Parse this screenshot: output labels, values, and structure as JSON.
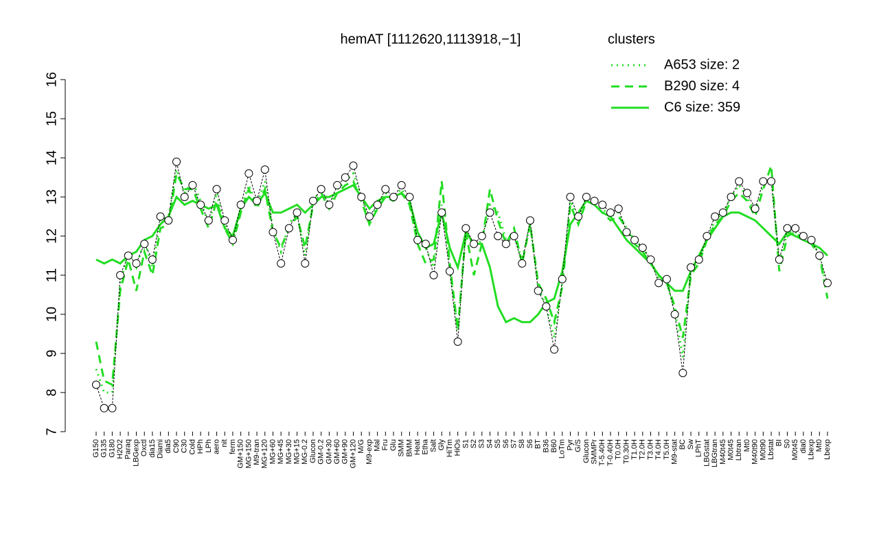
{
  "chart_data": {
    "type": "line",
    "title": "hemAT [1112620,1113918,−1]",
    "legend_title": "clusters",
    "legend_color": "#22dd22",
    "ylim": [
      7,
      16
    ],
    "yticks": [
      7,
      8,
      9,
      10,
      11,
      12,
      13,
      14,
      15,
      16
    ],
    "categories": [
      "G150",
      "G135",
      "G180",
      "H2O2",
      "Paraq",
      "LBGexp",
      "Oxctl",
      "dia15",
      "Diami",
      "dia5",
      "C90",
      "C30",
      "Cold",
      "HPh",
      "LPh",
      "aero",
      "nit",
      "ferm",
      "GM+150",
      "MG+150",
      "M9-tran",
      "MG+120",
      "MG+60",
      "MG+45",
      "MG+30",
      "MG+15",
      "MG-0.2",
      "Glucon",
      "GM-0.2",
      "GM+30",
      "GM+60",
      "GM+90",
      "GM+120",
      "M/G",
      "M9-exp",
      "Mal",
      "Fru",
      "Glu",
      "SMM",
      "BMM",
      "Heat",
      "Etha",
      "Salt",
      "Gly",
      "HiTm",
      "HiOs",
      "S1",
      "S2",
      "S3",
      "S4",
      "S5",
      "S6",
      "S7",
      "S8",
      "S6",
      "BT",
      "B36",
      "B60",
      "LoTm",
      "Pyr",
      "G/S",
      "Glucon",
      "SMMPr",
      "T-5.40H",
      "T-0.40H",
      "T0.0H",
      "T0.30H",
      "T1.0H",
      "T2.0H",
      "T3.0H",
      "T4.0H",
      "T5.0H",
      "M9-stat",
      "BC",
      "Sw",
      "LPhT",
      "LBGstat",
      "LBGtran",
      "M40t45",
      "M0t45",
      "Lbtran",
      "Mt0",
      "M40t90",
      "M0t90",
      "Lbstat",
      "BI",
      "S0",
      "M0t45",
      "dia0",
      "Lbexp",
      "Mt0",
      "Lbexp"
    ],
    "points": {
      "color": "#ffffff",
      "values": [
        8.2,
        7.6,
        7.6,
        11.0,
        11.5,
        11.3,
        11.8,
        11.4,
        12.5,
        12.4,
        13.9,
        13.0,
        13.3,
        12.8,
        12.4,
        13.2,
        12.4,
        11.9,
        12.8,
        13.6,
        12.9,
        13.7,
        12.1,
        11.3,
        12.2,
        12.6,
        11.3,
        12.9,
        13.2,
        12.8,
        13.3,
        13.5,
        13.8,
        13.0,
        12.5,
        12.8,
        13.2,
        13.0,
        13.3,
        13.0,
        11.9,
        11.8,
        11.0,
        12.6,
        11.1,
        9.3,
        12.2,
        11.8,
        12.0,
        12.6,
        12.0,
        11.8,
        12.0,
        11.3,
        12.4,
        10.6,
        10.2,
        9.1,
        10.9,
        13.0,
        12.5,
        13.0,
        12.9,
        12.8,
        12.6,
        12.7,
        12.1,
        11.9,
        11.7,
        11.4,
        10.8,
        10.9,
        10.0,
        8.5,
        11.2,
        11.4,
        12.0,
        12.5,
        12.6,
        13.0,
        13.4,
        13.1,
        12.7,
        13.4,
        13.4,
        11.4,
        12.2,
        12.2,
        12.0,
        11.9,
        11.5,
        10.8
      ]
    },
    "series": [
      {
        "name": "A653 size: 2",
        "color": "#22dd22",
        "style": "dotted",
        "values": [
          8.6,
          8.0,
          8.0,
          10.8,
          11.6,
          11.2,
          11.9,
          11.2,
          12.4,
          12.5,
          13.7,
          13.1,
          13.4,
          12.9,
          12.3,
          13.1,
          12.3,
          11.8,
          12.7,
          13.3,
          12.8,
          13.4,
          12.2,
          11.6,
          12.3,
          12.6,
          11.5,
          12.9,
          13.2,
          12.8,
          13.2,
          13.4,
          13.6,
          13.0,
          12.4,
          12.8,
          13.1,
          13.0,
          13.2,
          12.9,
          11.8,
          11.7,
          11.2,
          12.8,
          11.2,
          9.6,
          12.2,
          11.7,
          11.9,
          12.8,
          12.6,
          11.9,
          12.0,
          11.4,
          12.3,
          10.7,
          10.2,
          9.4,
          10.8,
          12.9,
          12.4,
          13.0,
          12.8,
          12.7,
          12.5,
          12.6,
          12.2,
          11.9,
          11.7,
          11.4,
          10.9,
          10.8,
          10.1,
          8.9,
          11.1,
          11.4,
          11.9,
          12.4,
          12.6,
          13.0,
          13.3,
          13.0,
          12.6,
          13.3,
          13.5,
          11.3,
          12.1,
          12.1,
          12.0,
          11.9,
          11.5,
          10.6
        ]
      },
      {
        "name": "B290 size: 4",
        "color": "#22dd22",
        "style": "dashed",
        "values": [
          9.3,
          8.3,
          8.2,
          10.6,
          11.4,
          10.6,
          11.6,
          11.0,
          12.2,
          12.3,
          13.6,
          13.2,
          13.2,
          12.7,
          12.2,
          12.9,
          12.2,
          11.8,
          12.6,
          13.2,
          12.7,
          13.2,
          12.1,
          11.7,
          12.2,
          12.5,
          11.7,
          12.8,
          13.1,
          12.7,
          13.1,
          13.3,
          13.4,
          12.9,
          12.3,
          12.7,
          13.0,
          12.9,
          13.1,
          12.8,
          11.8,
          11.3,
          11.4,
          13.4,
          11.3,
          9.6,
          12.1,
          11.0,
          11.8,
          13.2,
          12.4,
          11.8,
          12.2,
          11.3,
          12.3,
          10.8,
          10.4,
          9.8,
          10.7,
          12.8,
          12.3,
          12.9,
          12.8,
          12.6,
          12.4,
          12.5,
          12.2,
          11.8,
          11.6,
          11.3,
          11.0,
          10.8,
          10.2,
          9.4,
          11.0,
          11.3,
          11.9,
          12.3,
          12.5,
          12.9,
          13.1,
          12.9,
          12.5,
          13.2,
          13.8,
          11.1,
          12.0,
          12.1,
          11.9,
          11.8,
          11.5,
          10.4
        ]
      },
      {
        "name": "C6 size: 359",
        "color": "#22dd22",
        "style": "solid",
        "values": [
          11.4,
          11.3,
          11.4,
          11.3,
          11.5,
          11.6,
          11.9,
          12.0,
          12.3,
          12.5,
          13.0,
          12.8,
          12.9,
          12.8,
          12.7,
          12.8,
          12.2,
          12.0,
          12.7,
          13.0,
          12.8,
          13.1,
          12.6,
          12.6,
          12.7,
          12.8,
          12.6,
          12.8,
          13.0,
          13.0,
          13.1,
          13.2,
          13.3,
          13.0,
          12.7,
          12.9,
          13.0,
          13.0,
          13.1,
          12.9,
          12.1,
          11.7,
          11.8,
          12.6,
          11.7,
          11.2,
          12.1,
          11.8,
          11.8,
          11.2,
          10.2,
          9.8,
          9.9,
          9.8,
          9.8,
          10.0,
          10.3,
          10.4,
          11.1,
          12.3,
          12.6,
          12.9,
          12.8,
          12.6,
          12.5,
          12.2,
          11.9,
          11.7,
          11.5,
          11.3,
          11.0,
          10.8,
          10.6,
          10.6,
          11.1,
          11.5,
          11.9,
          12.2,
          12.5,
          12.6,
          12.6,
          12.5,
          12.4,
          12.2,
          12.0,
          11.8,
          12.1,
          12.0,
          11.9,
          11.8,
          11.7,
          11.5
        ]
      }
    ]
  }
}
